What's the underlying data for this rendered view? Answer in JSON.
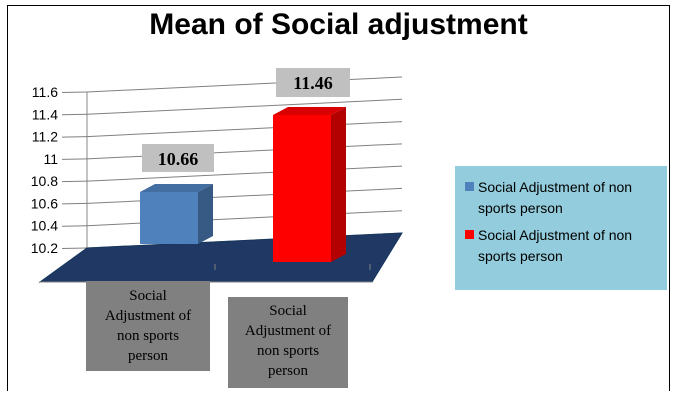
{
  "chart_data": {
    "type": "bar",
    "title": "Mean of Social adjustment",
    "categories": [
      "Social Adjustment of non sports person",
      "Social Adjustment of non sports person"
    ],
    "values": [
      10.66,
      11.46
    ],
    "data_labels": [
      "10.66",
      "11.46"
    ],
    "colors": [
      "#4f81bd",
      "#ff0000"
    ],
    "y_ticks": [
      "10.2",
      "10.4",
      "10.6",
      "10.8",
      "11",
      "11.2",
      "11.4",
      "11.6"
    ],
    "ylim": [
      10.2,
      11.6
    ],
    "grid": true,
    "three_d": true,
    "legend_position": "right",
    "legend": [
      {
        "label": "Social Adjustment of non sports person",
        "color": "#4f81bd"
      },
      {
        "label": "Social Adjustment of non sports person",
        "color": "#ff0000"
      }
    ]
  }
}
